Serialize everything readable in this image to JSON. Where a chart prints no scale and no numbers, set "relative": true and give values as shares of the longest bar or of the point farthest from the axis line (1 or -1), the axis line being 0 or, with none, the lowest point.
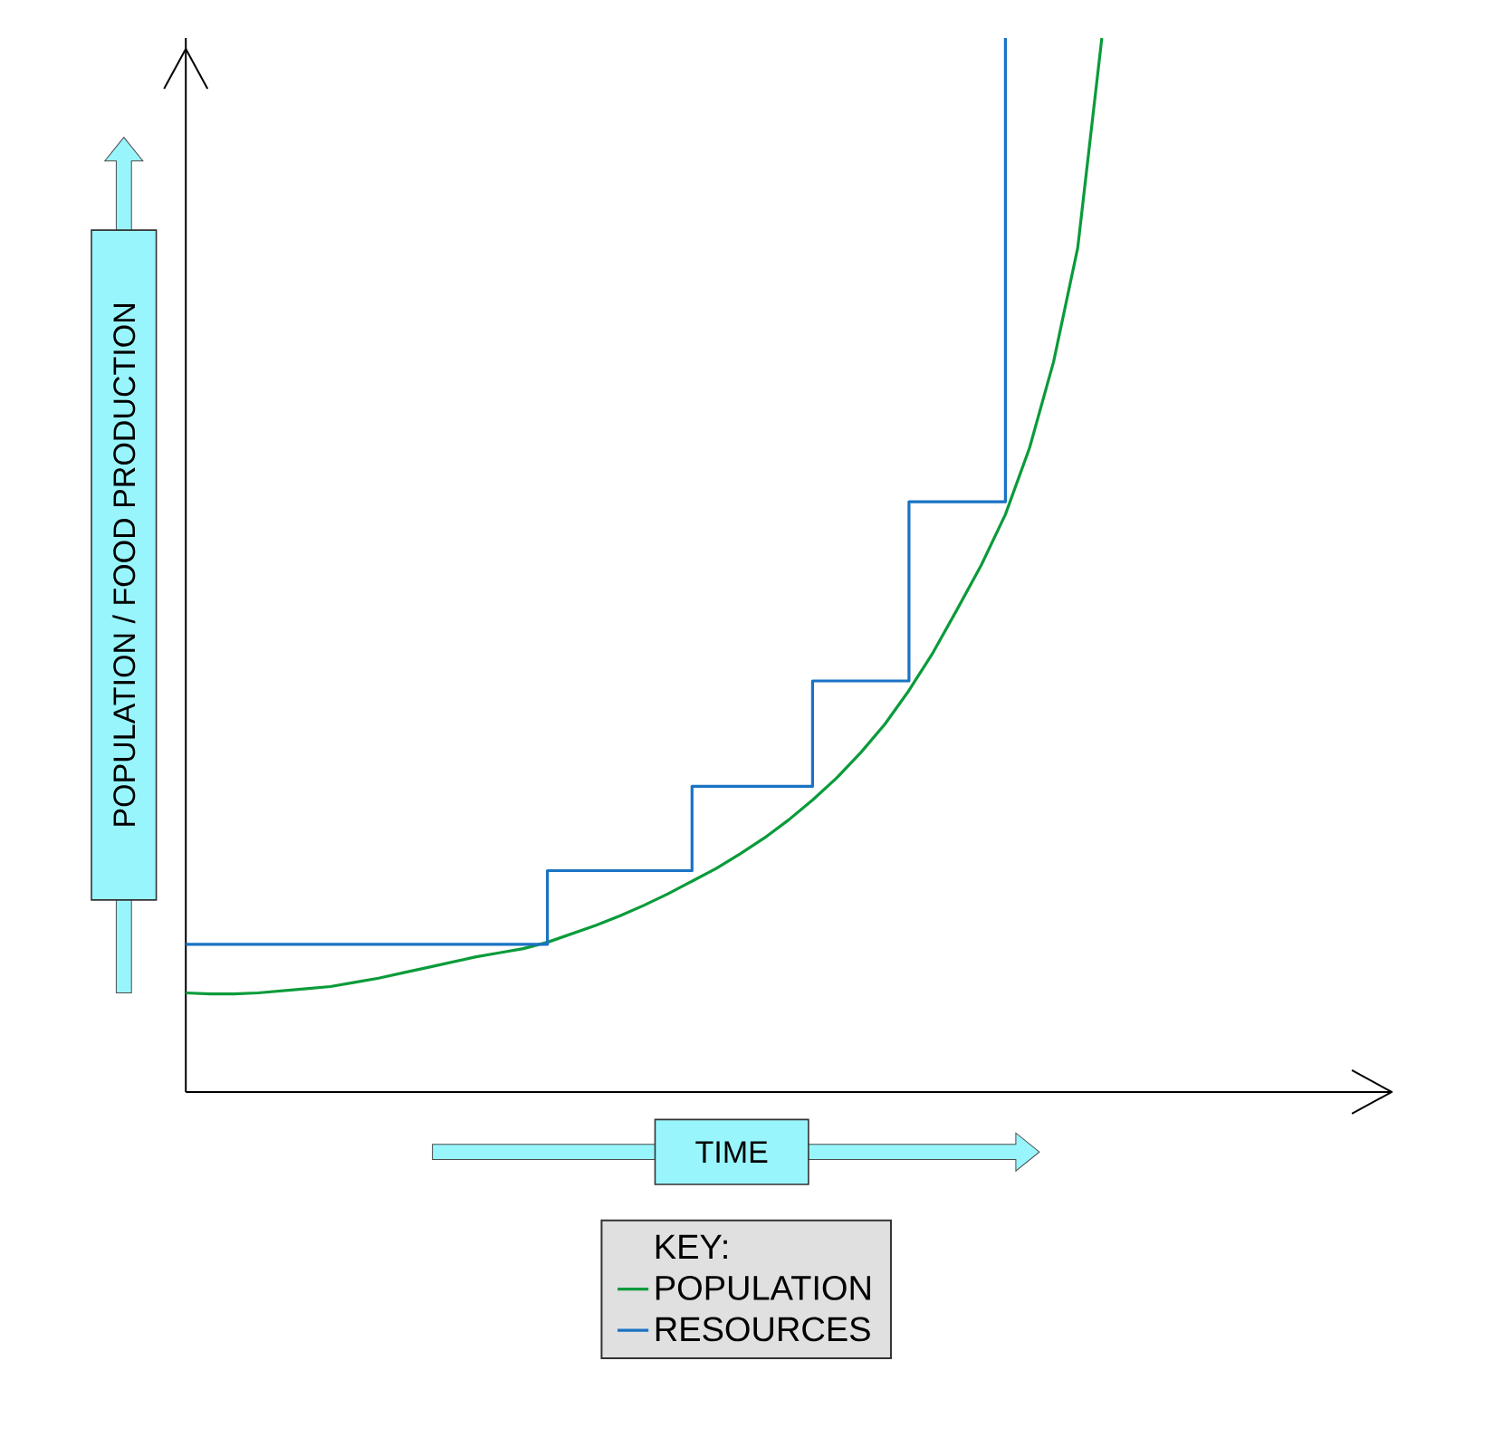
{
  "chart_data": {
    "type": "line",
    "relative": true,
    "xlabel": "TIME",
    "ylabel": "POPULATION / FOOD PRODUCTION",
    "legend_title": "KEY:",
    "legend": "bottom",
    "marker": "none",
    "categories": [
      null,
      null,
      null,
      null,
      null,
      null,
      null,
      null,
      null,
      null,
      null,
      null,
      null,
      null,
      null,
      null,
      null,
      null,
      null,
      null,
      null,
      null,
      null,
      null,
      null,
      null,
      null,
      null,
      null,
      null,
      null,
      null,
      null,
      null,
      null,
      null,
      null,
      null,
      null,
      null,
      null,
      null,
      null,
      null,
      null,
      null,
      null,
      null,
      null,
      null,
      null
    ],
    "series": [
      {
        "name": "POPULATION",
        "color": "#0a9b3a",
        "values": [
          0.094,
          0.093,
          0.093,
          0.094,
          0.096,
          0.098,
          0.1,
          0.104,
          0.108,
          0.113,
          0.118,
          0.123,
          0.128,
          0.132,
          0.136,
          0.142,
          0.15,
          0.158,
          0.167,
          0.177,
          0.188,
          0.2,
          0.212,
          0.226,
          0.241,
          0.258,
          0.277,
          0.298,
          0.322,
          0.349,
          0.381,
          0.417,
          0.458,
          0.5,
          0.548,
          0.611,
          0.693,
          0.801,
          1.0,
          null,
          null,
          null,
          null,
          null,
          null,
          null,
          null,
          null,
          null,
          null,
          null
        ]
      },
      {
        "name": "RESOURCES",
        "type": "step",
        "color": "#1a73c4",
        "values": [
          0.14,
          0.14,
          0.14,
          0.14,
          0.14,
          0.14,
          0.14,
          0.14,
          0.14,
          0.14,
          0.14,
          0.14,
          0.14,
          0.14,
          0.14,
          0.21,
          0.21,
          0.21,
          0.21,
          0.21,
          0.21,
          0.29,
          0.29,
          0.29,
          0.29,
          0.29,
          0.39,
          0.39,
          0.39,
          0.39,
          0.56,
          0.56,
          0.56,
          0.56,
          1.0,
          null,
          null,
          null,
          null,
          null,
          null,
          null,
          null,
          null,
          null,
          null,
          null,
          null,
          null,
          null,
          null
        ]
      }
    ]
  }
}
